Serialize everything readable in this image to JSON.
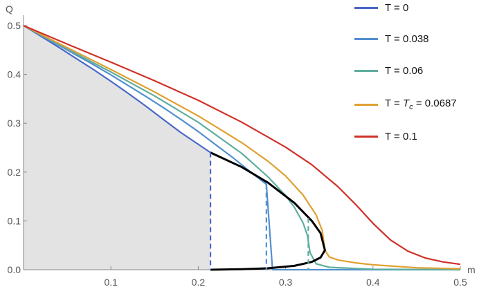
{
  "chart_data": {
    "type": "line",
    "xlabel": "m",
    "ylabel": "Q",
    "xlim": [
      0,
      0.5
    ],
    "ylim": [
      0,
      0.5
    ],
    "xticks": [
      "0.1",
      "0.2",
      "0.3",
      "0.4",
      "0.5"
    ],
    "yticks": [
      "0.0",
      "0.1",
      "0.2",
      "0.3",
      "0.4",
      "0.5"
    ],
    "grid": false,
    "legend_position": "top-right",
    "shaded_region": {
      "color": "#e3e3e3",
      "boundary_x": [
        0,
        0.02,
        0.04,
        0.06,
        0.08,
        0.1,
        0.12,
        0.14,
        0.16,
        0.18,
        0.2,
        0.214
      ],
      "boundary_y": [
        0.5,
        0.478,
        0.456,
        0.433,
        0.41,
        0.386,
        0.361,
        0.335,
        0.308,
        0.281,
        0.257,
        0.24
      ]
    },
    "series": [
      {
        "name": "T = 0",
        "color": "#4868c8",
        "x": [
          0,
          0.02,
          0.04,
          0.06,
          0.08,
          0.1,
          0.12,
          0.14,
          0.16,
          0.18,
          0.2,
          0.214
        ],
        "y": [
          0.5,
          0.478,
          0.456,
          0.433,
          0.41,
          0.386,
          0.361,
          0.335,
          0.308,
          0.281,
          0.257,
          0.24
        ]
      },
      {
        "name": "T = 0.038",
        "color": "#5290d0",
        "x": [
          0,
          0.02,
          0.04,
          0.06,
          0.08,
          0.1,
          0.12,
          0.14,
          0.16,
          0.18,
          0.2,
          0.22,
          0.24,
          0.26,
          0.278,
          0.285,
          0.3,
          0.32,
          0.35,
          0.4,
          0.45,
          0.5
        ],
        "y": [
          0.5,
          0.48,
          0.46,
          0.44,
          0.42,
          0.399,
          0.377,
          0.355,
          0.332,
          0.308,
          0.283,
          0.256,
          0.229,
          0.2,
          0.175,
          0.0,
          0.0,
          0.0,
          0.0,
          0.0,
          0.0,
          0.0
        ]
      },
      {
        "name": "T = 0.06",
        "color": "#5fae9e",
        "x": [
          0,
          0.05,
          0.1,
          0.15,
          0.2,
          0.25,
          0.28,
          0.3,
          0.31,
          0.32,
          0.325,
          0.328,
          0.335,
          0.35,
          0.4,
          0.5
        ],
        "y": [
          0.5,
          0.452,
          0.405,
          0.356,
          0.302,
          0.238,
          0.19,
          0.152,
          0.128,
          0.096,
          0.07,
          0.035,
          0.012,
          0.005,
          0.001,
          0.0
        ]
      },
      {
        "name": "T = T_c = 0.0687",
        "color": "#e0a030",
        "x": [
          0,
          0.05,
          0.1,
          0.15,
          0.2,
          0.25,
          0.28,
          0.3,
          0.32,
          0.335,
          0.342,
          0.345,
          0.35,
          0.36,
          0.38,
          0.4,
          0.45,
          0.5
        ],
        "y": [
          0.5,
          0.455,
          0.41,
          0.364,
          0.315,
          0.26,
          0.222,
          0.192,
          0.153,
          0.112,
          0.08,
          0.04,
          0.026,
          0.02,
          0.014,
          0.01,
          0.004,
          0.002
        ]
      },
      {
        "name": "T = 0.1",
        "color": "#d03028",
        "x": [
          0,
          0.05,
          0.1,
          0.15,
          0.2,
          0.25,
          0.3,
          0.33,
          0.36,
          0.38,
          0.4,
          0.42,
          0.44,
          0.46,
          0.48,
          0.5
        ],
        "y": [
          0.5,
          0.462,
          0.425,
          0.387,
          0.347,
          0.302,
          0.251,
          0.215,
          0.17,
          0.134,
          0.095,
          0.061,
          0.038,
          0.024,
          0.016,
          0.011
        ]
      }
    ],
    "coexistence_curve": {
      "color": "#000000",
      "x": [
        0.214,
        0.25,
        0.28,
        0.31,
        0.33,
        0.34,
        0.345,
        0.34,
        0.33,
        0.31,
        0.28,
        0.25,
        0.214
      ],
      "y": [
        0.24,
        0.21,
        0.178,
        0.137,
        0.1,
        0.075,
        0.04,
        0.025,
        0.016,
        0.008,
        0.003,
        0.001,
        0.0
      ]
    },
    "vertical_markers": [
      {
        "x": 0.214,
        "y": 0.24,
        "color": "#4868c8"
      },
      {
        "x": 0.278,
        "y": 0.175,
        "color": "#5290d0"
      },
      {
        "x": 0.326,
        "y": 0.106,
        "color": "#5fae9e"
      }
    ]
  },
  "legend": {
    "items": [
      {
        "label": "T = 0",
        "color": "#4868c8"
      },
      {
        "label": "T = 0.038",
        "color": "#5290d0"
      },
      {
        "label": "T = 0.06",
        "color": "#5fae9e"
      },
      {
        "label_prefix": "T = ",
        "label_var": "T",
        "label_sub": "c",
        "label_suffix": " = 0.0687",
        "color": "#e0a030"
      },
      {
        "label": "T = 0.1",
        "color": "#d03028"
      }
    ]
  }
}
